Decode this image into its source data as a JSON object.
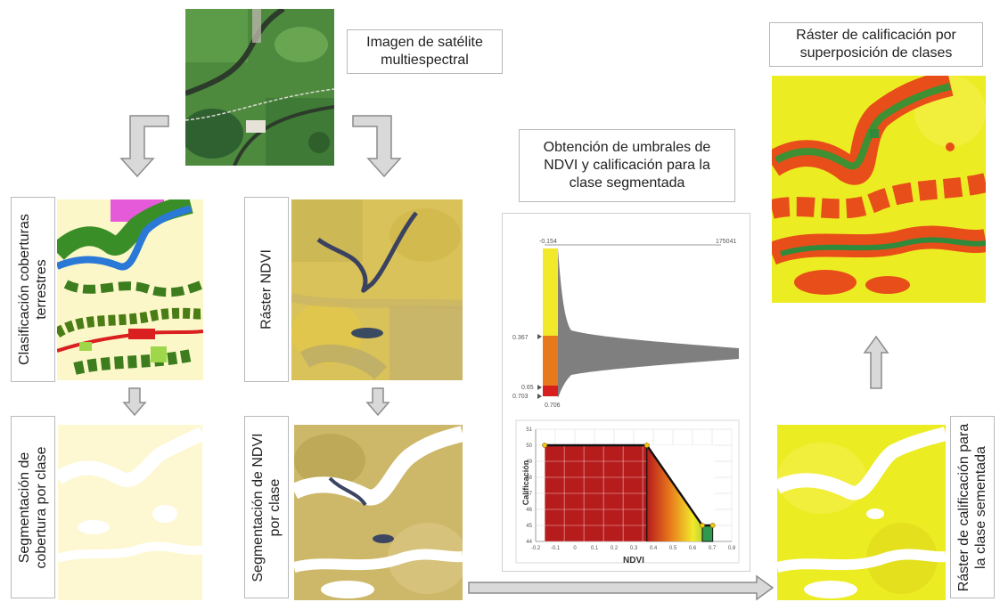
{
  "labels": {
    "satellite": "Imagen de satélite multiespectral",
    "classification": "Clasificación coberturas terrestres",
    "ndvi_raster": "Ráster NDVI",
    "segmentation_cover": "Segmentación de cobertura por clase",
    "segmentation_ndvi": "Segmentación de NDVI por clase",
    "thresholds": "Obtención de umbrales de NDVI y calificación para la clase segmentada",
    "rating_raster": "Ráster de calificación para la clase sementada",
    "overlay_raster": "Ráster de calificación por superposición de clases"
  },
  "histogram": {
    "min_label": "-0.154",
    "max_label": "175041",
    "t1": "0.367",
    "t2": "0.65",
    "t3": "0.703",
    "t4": "0.706"
  },
  "chart_data": {
    "type": "line",
    "xlabel": "NDVI",
    "ylabel": "Calificación",
    "xlim": [
      -0.2,
      0.8
    ],
    "ylim": [
      44,
      51
    ],
    "x_ticks": [
      "-0.2",
      "-0.1",
      "0",
      "0.1",
      "0.2",
      "0.3",
      "0.4",
      "0.5",
      "0.6",
      "0.7",
      "0.8"
    ],
    "y_ticks": [
      "44",
      "45",
      "46",
      "47",
      "48",
      "49",
      "50",
      "51"
    ],
    "series": [
      {
        "x": [
          -0.154,
          0.367,
          0.65,
          0.703
        ],
        "y": [
          50,
          50,
          45,
          45
        ]
      }
    ]
  },
  "colors": {
    "arrow_fill": "#d9d9d9",
    "arrow_stroke": "#8c8c8c",
    "class_yellow": "#f2e92a",
    "class_orange": "#e8781c",
    "class_red": "#d81f1f",
    "hist_gray": "#7f7f7f"
  }
}
